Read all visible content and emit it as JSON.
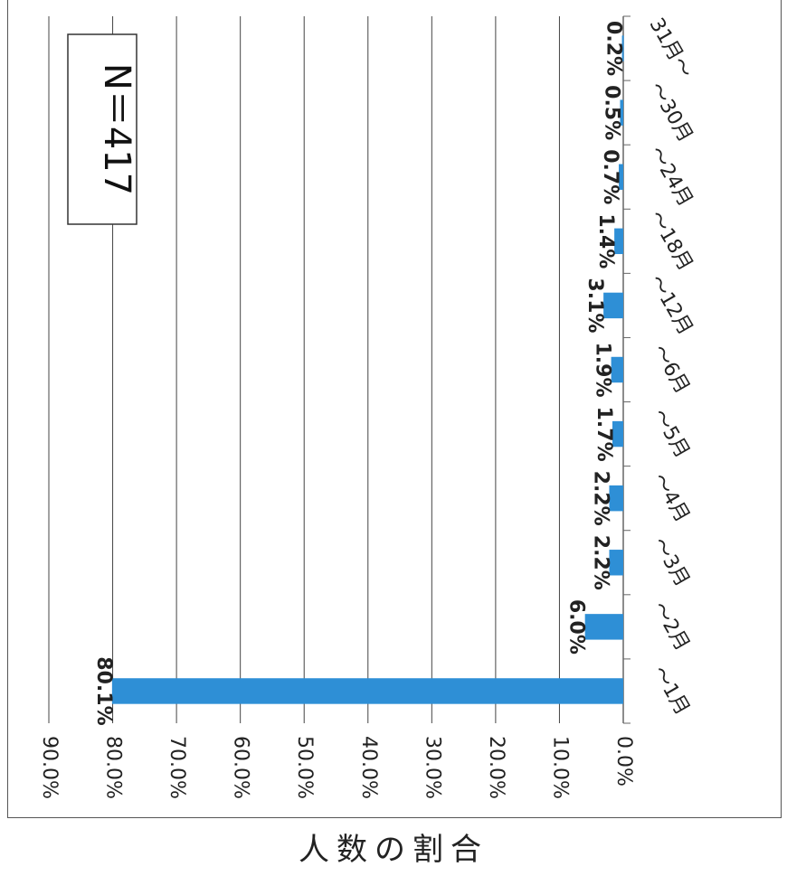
{
  "annotation": "N＝417",
  "ylabel": "人数の割合",
  "chart_data": {
    "type": "bar",
    "orientation": "rotated-90",
    "categories": [
      "～1月",
      "～2月",
      "～3月",
      "～4月",
      "～5月",
      "～6月",
      "～12月",
      "～18月",
      "～24月",
      "～30月",
      "31月～"
    ],
    "values": [
      80.1,
      6.0,
      2.2,
      2.2,
      1.7,
      1.9,
      3.1,
      1.4,
      0.7,
      0.5,
      0.2
    ],
    "data_labels": [
      "80.1%",
      "6.0%",
      "2.2%",
      "2.2%",
      "1.7%",
      "1.9%",
      "3.1%",
      "1.4%",
      "0.7%",
      "0.5%",
      "0.2%"
    ],
    "ylabel": "人数の割合",
    "ylim": [
      0,
      90
    ],
    "yticks": [
      "0.0%",
      "10.0%",
      "20.0%",
      "30.0%",
      "40.0%",
      "50.0%",
      "60.0%",
      "70.0%",
      "80.0%",
      "90.0%"
    ],
    "bar_color": "#2e8fd6",
    "grid": true
  }
}
